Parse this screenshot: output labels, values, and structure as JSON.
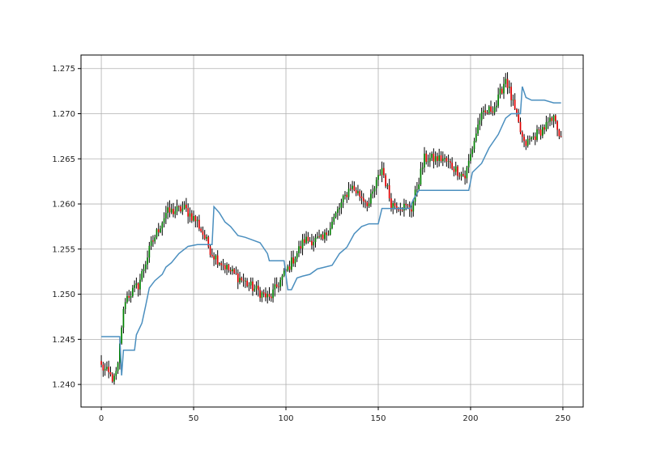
{
  "chart_data": {
    "type": "candlestick",
    "title": "",
    "xlabel": "",
    "ylabel": "",
    "xlim": [
      -11,
      261
    ],
    "ylim": [
      1.2375,
      1.2765
    ],
    "x_ticks": [
      0,
      50,
      100,
      150,
      200,
      250
    ],
    "x_tick_labels": [
      "0",
      "50",
      "100",
      "150",
      "200",
      "250"
    ],
    "y_ticks": [
      1.24,
      1.245,
      1.25,
      1.255,
      1.26,
      1.265,
      1.27,
      1.275
    ],
    "y_tick_labels": [
      "1.240",
      "1.245",
      "1.250",
      "1.255",
      "1.260",
      "1.265",
      "1.270",
      "1.275"
    ],
    "grid": true,
    "colors": {
      "up": "#008000",
      "down": "#e00000",
      "wick": "#000000",
      "line": "#4b8fbf"
    },
    "close_anchors": [
      [
        0,
        1.242
      ],
      [
        7,
        1.2405
      ],
      [
        9,
        1.242
      ],
      [
        11,
        1.2465
      ],
      [
        13,
        1.2495
      ],
      [
        20,
        1.251
      ],
      [
        27,
        1.2555
      ],
      [
        35,
        1.259
      ],
      [
        45,
        1.2595
      ],
      [
        52,
        1.258
      ],
      [
        60,
        1.2545
      ],
      [
        70,
        1.2525
      ],
      [
        80,
        1.251
      ],
      [
        91,
        1.2495
      ],
      [
        100,
        1.2525
      ],
      [
        110,
        1.256
      ],
      [
        120,
        1.256
      ],
      [
        130,
        1.26
      ],
      [
        135,
        1.262
      ],
      [
        145,
        1.26
      ],
      [
        152,
        1.264
      ],
      [
        157,
        1.26
      ],
      [
        168,
        1.2595
      ],
      [
        175,
        1.265
      ],
      [
        185,
        1.265
      ],
      [
        197,
        1.263
      ],
      [
        205,
        1.2695
      ],
      [
        214,
        1.271
      ],
      [
        219,
        1.274
      ],
      [
        223,
        1.271
      ],
      [
        229,
        1.2665
      ],
      [
        240,
        1.2685
      ],
      [
        246,
        1.2695
      ],
      [
        249,
        1.267
      ]
    ],
    "series": [
      {
        "points": [
          [
            0,
            1.2453
          ],
          [
            5,
            1.2453
          ],
          [
            10,
            1.2453
          ],
          [
            11,
            1.241
          ],
          [
            12,
            1.2438
          ],
          [
            18,
            1.2438
          ],
          [
            19,
            1.2455
          ],
          [
            22,
            1.2468
          ],
          [
            24,
            1.2487
          ],
          [
            26,
            1.2507
          ],
          [
            29,
            1.2515
          ],
          [
            33,
            1.2522
          ],
          [
            35,
            1.253
          ],
          [
            38,
            1.2535
          ],
          [
            42,
            1.2545
          ],
          [
            47,
            1.2553
          ],
          [
            52,
            1.2555
          ],
          [
            59,
            1.2555
          ],
          [
            60,
            1.2555
          ],
          [
            61,
            1.2597
          ],
          [
            64,
            1.259
          ],
          [
            67,
            1.258
          ],
          [
            70,
            1.2575
          ],
          [
            74,
            1.2565
          ],
          [
            78,
            1.2563
          ],
          [
            82,
            1.256
          ],
          [
            86,
            1.2557
          ],
          [
            90,
            1.2545
          ],
          [
            91,
            1.2537
          ],
          [
            99,
            1.2537
          ],
          [
            101,
            1.2505
          ],
          [
            103,
            1.2505
          ],
          [
            106,
            1.2518
          ],
          [
            109,
            1.252
          ],
          [
            113,
            1.2522
          ],
          [
            117,
            1.2528
          ],
          [
            121,
            1.253
          ],
          [
            125,
            1.2532
          ],
          [
            129,
            1.2545
          ],
          [
            133,
            1.2552
          ],
          [
            137,
            1.2567
          ],
          [
            141,
            1.2575
          ],
          [
            145,
            1.2578
          ],
          [
            150,
            1.2578
          ],
          [
            152,
            1.2595
          ],
          [
            160,
            1.2595
          ],
          [
            167,
            1.2595
          ],
          [
            169,
            1.2605
          ],
          [
            172,
            1.2615
          ],
          [
            176,
            1.2615
          ],
          [
            185,
            1.2615
          ],
          [
            193,
            1.2615
          ],
          [
            199,
            1.2615
          ],
          [
            201,
            1.2635
          ],
          [
            206,
            1.2645
          ],
          [
            210,
            1.2662
          ],
          [
            215,
            1.2677
          ],
          [
            219,
            1.2695
          ],
          [
            222,
            1.27
          ],
          [
            226,
            1.27
          ],
          [
            227,
            1.27
          ],
          [
            228,
            1.273
          ],
          [
            230,
            1.2718
          ],
          [
            233,
            1.2715
          ],
          [
            240,
            1.2715
          ],
          [
            245,
            1.2712
          ],
          [
            249,
            1.2712
          ]
        ]
      }
    ]
  }
}
